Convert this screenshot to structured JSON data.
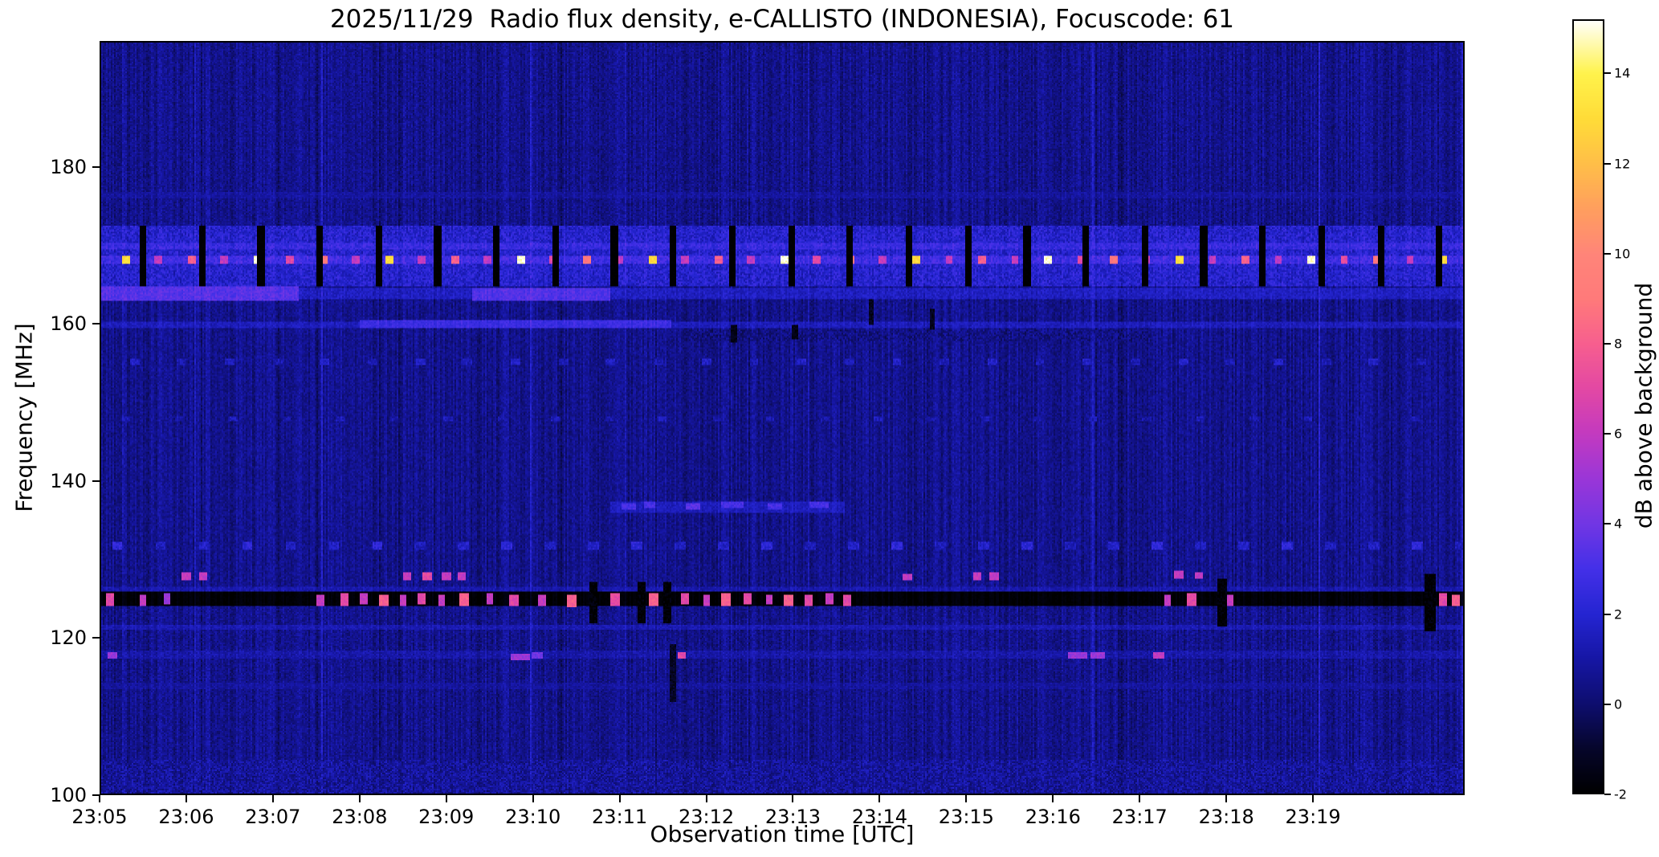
{
  "figure": {
    "background": "#ffffff",
    "text_color": "#000000"
  },
  "chart_data": {
    "type": "heatmap",
    "title": "2025/11/29  Radio flux density, e-CALLISTO (INDONESIA), Focuscode: 61",
    "xlabel": "Observation time [UTC]",
    "ylabel": "Frequency [MHz]",
    "x_tick_labels": [
      "23:05",
      "23:06",
      "23:07",
      "23:08",
      "23:09",
      "23:10",
      "23:11",
      "23:12",
      "23:13",
      "23:14",
      "23:15",
      "23:16",
      "23:17",
      "23:18",
      "23:19"
    ],
    "x_range_minutes": [
      0,
      15.75
    ],
    "y_tick_values": [
      100,
      120,
      140,
      160,
      180
    ],
    "y_range_mhz": [
      100,
      196
    ],
    "colorbar": {
      "label": "dB above background",
      "tick_values": [
        -2,
        0,
        2,
        4,
        6,
        8,
        10,
        12,
        14
      ],
      "range_db": [
        -2,
        15.2
      ],
      "stops": [
        [
          -2.0,
          "#000000"
        ],
        [
          -1.0,
          "#06062a"
        ],
        [
          0.0,
          "#0e0e6e"
        ],
        [
          1.0,
          "#1616a4"
        ],
        [
          2.0,
          "#2525d2"
        ],
        [
          3.0,
          "#4430e8"
        ],
        [
          4.0,
          "#7136e4"
        ],
        [
          5.0,
          "#9a36d8"
        ],
        [
          6.0,
          "#c33ac0"
        ],
        [
          7.0,
          "#e348a4"
        ],
        [
          8.0,
          "#f75f8f"
        ],
        [
          9.0,
          "#ff7a7a"
        ],
        [
          10.0,
          "#ff8579"
        ],
        [
          11.0,
          "#ff9f5e"
        ],
        [
          12.0,
          "#ffbf48"
        ],
        [
          13.0,
          "#ffdc38"
        ],
        [
          14.0,
          "#fff34c"
        ],
        [
          15.2,
          "#ffffff"
        ]
      ]
    },
    "background": {
      "base_db": 0.55,
      "pixel_noise_db": 1.0,
      "column_noise_db": 0.5,
      "bright_column_chance": 0.03
    },
    "bands": [
      {
        "f": [
          100,
          104.5
        ],
        "t": [
          0,
          15.75
        ],
        "db": 0.8,
        "noise": 1.6
      },
      {
        "f": [
          176.0,
          176.7
        ],
        "t": [
          0,
          15.75
        ],
        "db": 0.9,
        "noise": 0.8
      },
      {
        "f": [
          164.7,
          172.5
        ],
        "t": [
          0,
          15.75
        ],
        "db": 1.9,
        "noise": 1.6
      },
      {
        "f": [
          169.5,
          170.3
        ],
        "t": [
          0,
          15.75
        ],
        "db": 2.6,
        "noise": 1.2
      },
      {
        "f": [
          167.7,
          168.7
        ],
        "t": [
          0,
          15.75
        ],
        "db": 2.8,
        "noise": 1.2
      },
      {
        "f": [
          163.1,
          164.5
        ],
        "t": [
          0,
          15.75
        ],
        "db": 1.6,
        "noise": 1.0
      },
      {
        "f": [
          162.9,
          164.7
        ],
        "t": [
          0,
          2.3
        ],
        "db": 3.4,
        "noise": 1.0
      },
      {
        "f": [
          163.0,
          164.5
        ],
        "t": [
          4.3,
          5.9
        ],
        "db": 3.3,
        "noise": 0.9
      },
      {
        "f": [
          159.4,
          160.3
        ],
        "t": [
          0,
          15.75
        ],
        "db": 1.5,
        "noise": 0.9
      },
      {
        "f": [
          159.5,
          160.4
        ],
        "t": [
          3.0,
          6.6
        ],
        "db": 2.7,
        "noise": 0.8
      },
      {
        "f": [
          157.9,
          159.2
        ],
        "t": [
          6.8,
          12.2
        ],
        "db": 0.4,
        "noise": 1.5
      },
      {
        "f": [
          135.9,
          137.4
        ],
        "t": [
          5.9,
          8.6
        ],
        "db": 1.5,
        "noise": 0.8
      },
      {
        "f": [
          126.0,
          126.6
        ],
        "t": [
          0,
          15.75
        ],
        "db": 1.2,
        "noise": 0.9
      },
      {
        "f": [
          121.0,
          121.7
        ],
        "t": [
          0,
          15.75
        ],
        "db": 1.3,
        "noise": 0.8
      },
      {
        "f": [
          117.4,
          118.4
        ],
        "t": [
          0,
          15.75
        ],
        "db": 1.1,
        "noise": 0.9
      },
      {
        "f": [
          113.5,
          114.2
        ],
        "t": [
          0,
          15.75
        ],
        "db": 0.9,
        "noise": 0.8
      },
      {
        "f": [
          124.15,
          125.85
        ],
        "t": [
          0,
          15.75
        ],
        "db": -1.85,
        "noise": 0.25
      }
    ],
    "dot_lines": [
      {
        "f": 168.15,
        "h": 0.9,
        "start": 0.3,
        "spacing": 0.38,
        "w": 0.07,
        "pattern": [
          13,
          6,
          8,
          6,
          15,
          7,
          9,
          6
        ]
      },
      {
        "f": 131.8,
        "h": 0.7,
        "start": 0.2,
        "spacing": 0.5,
        "w": 0.1,
        "pattern": [
          2.2,
          1.5,
          1.8
        ]
      },
      {
        "f": 155.1,
        "h": 0.6,
        "start": 0.4,
        "spacing": 0.55,
        "w": 0.09,
        "pattern": [
          1.7,
          1.3
        ]
      },
      {
        "f": 147.9,
        "h": 0.5,
        "start": 0.3,
        "spacing": 0.62,
        "w": 0.08,
        "pattern": [
          1.5,
          1.1
        ]
      }
    ],
    "bar_series": [
      {
        "f": [
          164.8,
          172.4
        ],
        "start": 0.5,
        "spacing": 0.68,
        "w": 0.06,
        "db": -2
      }
    ],
    "bursts": [
      {
        "t": 0.12,
        "f": 124.9,
        "w": 0.08,
        "h": 1.3,
        "db": 7
      },
      {
        "t": 0.5,
        "f": 124.9,
        "w": 0.06,
        "h": 1.2,
        "db": 6
      },
      {
        "t": 0.78,
        "f": 125.0,
        "w": 0.05,
        "h": 1.1,
        "db": 5
      },
      {
        "t": 2.55,
        "f": 124.9,
        "w": 0.07,
        "h": 1.2,
        "db": 6
      },
      {
        "t": 2.82,
        "f": 124.9,
        "w": 0.08,
        "h": 1.3,
        "db": 7
      },
      {
        "t": 3.05,
        "f": 125.0,
        "w": 0.06,
        "h": 1.2,
        "db": 6
      },
      {
        "t": 3.28,
        "f": 124.8,
        "w": 0.09,
        "h": 1.3,
        "db": 8
      },
      {
        "t": 3.5,
        "f": 124.9,
        "w": 0.06,
        "h": 1.2,
        "db": 6
      },
      {
        "t": 3.72,
        "f": 125.0,
        "w": 0.08,
        "h": 1.2,
        "db": 7
      },
      {
        "t": 3.95,
        "f": 124.9,
        "w": 0.06,
        "h": 1.2,
        "db": 6
      },
      {
        "t": 4.2,
        "f": 124.9,
        "w": 0.09,
        "h": 1.3,
        "db": 8
      },
      {
        "t": 4.5,
        "f": 125.0,
        "w": 0.06,
        "h": 1.1,
        "db": 6
      },
      {
        "t": 4.78,
        "f": 124.9,
        "w": 0.08,
        "h": 1.2,
        "db": 7
      },
      {
        "t": 5.1,
        "f": 124.9,
        "w": 0.07,
        "h": 1.2,
        "db": 6
      },
      {
        "t": 5.45,
        "f": 124.8,
        "w": 0.1,
        "h": 1.4,
        "db": 8
      },
      {
        "t": 5.95,
        "f": 124.9,
        "w": 0.08,
        "h": 1.3,
        "db": 7
      },
      {
        "t": 6.4,
        "f": 124.9,
        "w": 0.09,
        "h": 1.3,
        "db": 8
      },
      {
        "t": 6.75,
        "f": 125.0,
        "w": 0.07,
        "h": 1.2,
        "db": 7
      },
      {
        "t": 7.0,
        "f": 124.9,
        "w": 0.06,
        "h": 1.2,
        "db": 6
      },
      {
        "t": 7.22,
        "f": 124.9,
        "w": 0.09,
        "h": 1.3,
        "db": 8
      },
      {
        "t": 7.48,
        "f": 125.0,
        "w": 0.07,
        "h": 1.2,
        "db": 7
      },
      {
        "t": 7.72,
        "f": 124.9,
        "w": 0.06,
        "h": 1.1,
        "db": 6
      },
      {
        "t": 7.95,
        "f": 124.8,
        "w": 0.09,
        "h": 1.3,
        "db": 8
      },
      {
        "t": 8.18,
        "f": 124.9,
        "w": 0.07,
        "h": 1.2,
        "db": 7
      },
      {
        "t": 8.42,
        "f": 125.0,
        "w": 0.06,
        "h": 1.1,
        "db": 6
      },
      {
        "t": 8.62,
        "f": 124.9,
        "w": 0.07,
        "h": 1.2,
        "db": 7
      },
      {
        "t": 12.32,
        "f": 124.9,
        "w": 0.07,
        "h": 1.2,
        "db": 6
      },
      {
        "t": 12.6,
        "f": 124.9,
        "w": 0.08,
        "h": 1.3,
        "db": 7
      },
      {
        "t": 13.05,
        "f": 124.9,
        "w": 0.06,
        "h": 1.2,
        "db": 6
      },
      {
        "t": 15.5,
        "f": 124.9,
        "w": 0.08,
        "h": 1.3,
        "db": 7
      },
      {
        "t": 15.65,
        "f": 124.9,
        "w": 0.07,
        "h": 1.2,
        "db": 8
      },
      {
        "t": 1.0,
        "f": 127.9,
        "w": 0.08,
        "h": 0.7,
        "db": 6
      },
      {
        "t": 1.2,
        "f": 127.9,
        "w": 0.08,
        "h": 0.7,
        "db": 6
      },
      {
        "t": 3.55,
        "f": 127.9,
        "w": 0.08,
        "h": 0.7,
        "db": 6
      },
      {
        "t": 3.78,
        "f": 127.9,
        "w": 0.09,
        "h": 0.7,
        "db": 7
      },
      {
        "t": 4.0,
        "f": 127.9,
        "w": 0.08,
        "h": 0.7,
        "db": 6
      },
      {
        "t": 4.18,
        "f": 127.9,
        "w": 0.07,
        "h": 0.7,
        "db": 6
      },
      {
        "t": 9.32,
        "f": 127.8,
        "w": 0.08,
        "h": 0.7,
        "db": 6
      },
      {
        "t": 10.12,
        "f": 127.9,
        "w": 0.08,
        "h": 0.7,
        "db": 6
      },
      {
        "t": 10.32,
        "f": 127.9,
        "w": 0.08,
        "h": 0.7,
        "db": 6
      },
      {
        "t": 12.45,
        "f": 128.0,
        "w": 0.09,
        "h": 0.8,
        "db": 6
      },
      {
        "t": 12.68,
        "f": 128.0,
        "w": 0.08,
        "h": 0.7,
        "db": 6
      },
      {
        "t": 0.15,
        "f": 117.7,
        "w": 0.1,
        "h": 0.6,
        "db": 5
      },
      {
        "t": 4.85,
        "f": 117.6,
        "w": 0.2,
        "h": 0.6,
        "db": 5
      },
      {
        "t": 5.05,
        "f": 117.7,
        "w": 0.12,
        "h": 0.6,
        "db": 4
      },
      {
        "t": 6.72,
        "f": 117.8,
        "w": 0.08,
        "h": 0.7,
        "db": 7
      },
      {
        "t": 11.28,
        "f": 117.7,
        "w": 0.2,
        "h": 0.6,
        "db": 5
      },
      {
        "t": 11.52,
        "f": 117.7,
        "w": 0.15,
        "h": 0.6,
        "db": 5
      },
      {
        "t": 12.22,
        "f": 117.8,
        "w": 0.1,
        "h": 0.6,
        "db": 6
      },
      {
        "t": 6.1,
        "f": 136.8,
        "w": 0.15,
        "h": 0.6,
        "db": 3
      },
      {
        "t": 6.35,
        "f": 136.9,
        "w": 0.12,
        "h": 0.6,
        "db": 3
      },
      {
        "t": 6.85,
        "f": 136.8,
        "w": 0.15,
        "h": 0.6,
        "db": 3.5
      },
      {
        "t": 7.3,
        "f": 136.9,
        "w": 0.25,
        "h": 0.6,
        "db": 3
      },
      {
        "t": 7.8,
        "f": 136.8,
        "w": 0.15,
        "h": 0.6,
        "db": 3
      },
      {
        "t": 8.3,
        "f": 136.9,
        "w": 0.2,
        "h": 0.6,
        "db": 3
      },
      {
        "t": 6.62,
        "f": 115.5,
        "w": 0.05,
        "h": 7,
        "db": -1.2
      },
      {
        "t": 7.32,
        "f": 158.8,
        "w": 0.06,
        "h": 2,
        "db": -1.5
      },
      {
        "t": 8.02,
        "f": 159.0,
        "w": 0.05,
        "h": 1.6,
        "db": -1.5
      },
      {
        "t": 8.9,
        "f": 161.5,
        "w": 0.04,
        "h": 3,
        "db": -1.3
      },
      {
        "t": 9.6,
        "f": 160.5,
        "w": 0.04,
        "h": 2.5,
        "db": -1.3
      },
      {
        "t": 5.7,
        "f": 124.5,
        "w": 0.08,
        "h": 5,
        "db": -1.9
      },
      {
        "t": 6.25,
        "f": 124.5,
        "w": 0.07,
        "h": 5,
        "db": -1.9
      },
      {
        "t": 6.55,
        "f": 124.5,
        "w": 0.08,
        "h": 5,
        "db": -1.9
      },
      {
        "t": 12.95,
        "f": 124.5,
        "w": 0.1,
        "h": 6,
        "db": -1.9
      },
      {
        "t": 15.35,
        "f": 124.5,
        "w": 0.12,
        "h": 7,
        "db": -1.9
      }
    ]
  }
}
